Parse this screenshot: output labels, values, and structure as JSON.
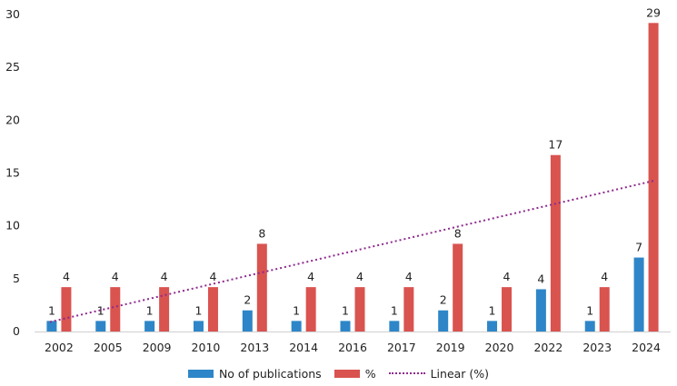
{
  "chart_data": {
    "type": "bar",
    "title": "",
    "xlabel": "",
    "ylabel": "",
    "ylim": [
      0,
      30
    ],
    "yticks": [
      0,
      5,
      10,
      15,
      20,
      25,
      30
    ],
    "grid": false,
    "categories": [
      "2002",
      "2005",
      "2009",
      "2010",
      "2013",
      "2014",
      "2016",
      "2017",
      "2019",
      "2020",
      "2022",
      "2023",
      "2024"
    ],
    "series": [
      {
        "name": "No of publications",
        "color": "#2e86c8",
        "values": [
          1,
          1,
          1,
          1,
          2,
          1,
          1,
          1,
          2,
          1,
          4,
          1,
          7
        ],
        "labels": [
          "1",
          "1",
          "1",
          "1",
          "2",
          "1",
          "1",
          "1",
          "2",
          "1",
          "4",
          "1",
          "7"
        ]
      },
      {
        "name": "%",
        "color": "#d9534f",
        "values": [
          4.2,
          4.2,
          4.2,
          4.2,
          8.3,
          4.2,
          4.2,
          4.2,
          8.3,
          4.2,
          16.7,
          4.2,
          29.2
        ],
        "labels": [
          "4",
          "4",
          "4",
          "4",
          "8",
          "4",
          "4",
          "4",
          "8",
          "4",
          "17",
          "4",
          "29"
        ]
      }
    ],
    "trendline": {
      "name": "Linear (%)",
      "of_series": "%",
      "color": "#8e2a8e",
      "style": "dotted",
      "start": 0.9,
      "end": 14.3
    },
    "legend": {
      "position": "bottom",
      "items": [
        "No of publications",
        "%",
        "Linear (%)"
      ]
    }
  }
}
